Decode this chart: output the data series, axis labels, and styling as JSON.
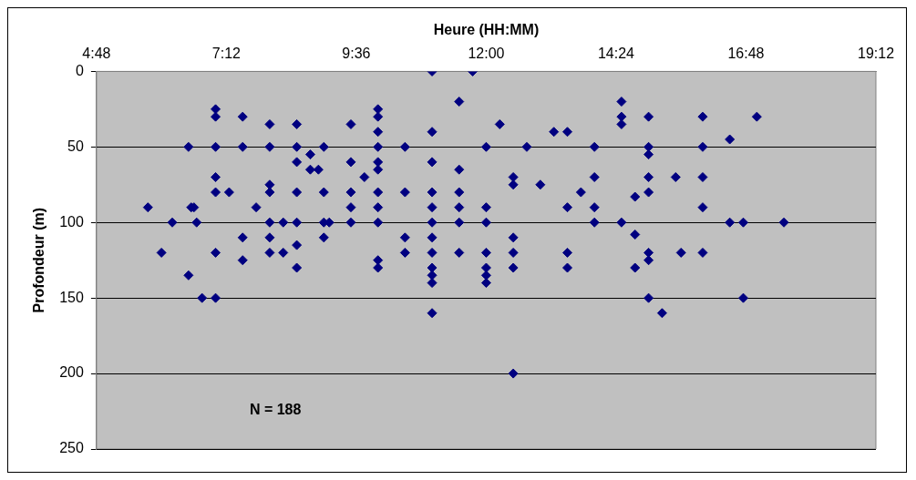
{
  "chart_data": {
    "type": "scatter",
    "xlabel": "Heure (HH:MM)",
    "ylabel": "Profondeur (m)",
    "x": [
      5.75,
      6,
      6.2,
      6.5,
      6.5,
      6.55,
      6.6,
      6.65,
      6.75,
      7,
      7,
      7,
      7,
      7,
      7,
      7,
      7.25,
      7.5,
      7.5,
      7.5,
      7.5,
      7.75,
      8,
      8,
      8,
      8,
      8,
      8,
      8,
      8.25,
      8.25,
      8.5,
      8.5,
      8.5,
      8.5,
      8.5,
      8.5,
      8.5,
      8.75,
      8.75,
      8.9,
      9,
      9,
      9,
      9,
      9.1,
      9.5,
      9.5,
      9.5,
      9.5,
      9.5,
      9.75,
      10,
      10,
      10,
      10,
      10,
      10,
      10,
      10,
      10,
      10,
      10,
      10.5,
      10.5,
      10.5,
      10.5,
      11,
      11,
      11,
      11,
      11,
      11,
      11,
      11,
      11,
      11,
      11,
      11,
      11.5,
      11.5,
      11.5,
      11.5,
      11.5,
      11.5,
      11.75,
      12,
      12,
      12,
      12,
      12,
      12,
      12,
      12.25,
      12.5,
      12.5,
      12.5,
      12.5,
      12.5,
      12.5,
      12.75,
      13,
      13.25,
      13.5,
      13.5,
      13.5,
      13.5,
      13.75,
      14,
      14,
      14,
      14,
      14.5,
      14.5,
      14.5,
      14.5,
      14.75,
      14.75,
      14.75,
      15,
      15,
      15,
      15,
      15,
      15,
      15,
      15,
      15.25,
      15.5,
      15.6,
      16,
      16,
      16,
      16,
      16,
      16.5,
      16.5,
      16.75,
      16.75,
      17,
      17.5
    ],
    "values": [
      90,
      120,
      100,
      50,
      135,
      90,
      90,
      100,
      150,
      25,
      30,
      50,
      70,
      80,
      120,
      150,
      80,
      30,
      50,
      110,
      125,
      90,
      35,
      50,
      75,
      80,
      100,
      110,
      120,
      100,
      120,
      35,
      50,
      60,
      80,
      100,
      115,
      130,
      55,
      65,
      65,
      50,
      80,
      100,
      110,
      100,
      35,
      60,
      80,
      90,
      100,
      70,
      25,
      30,
      40,
      50,
      60,
      65,
      80,
      90,
      100,
      125,
      130,
      50,
      80,
      110,
      120,
      0,
      40,
      60,
      80,
      90,
      100,
      110,
      120,
      130,
      135,
      140,
      160,
      20,
      65,
      80,
      90,
      100,
      120,
      0,
      50,
      90,
      100,
      120,
      130,
      135,
      140,
      35,
      70,
      75,
      110,
      120,
      130,
      200,
      50,
      75,
      40,
      40,
      90,
      120,
      130,
      80,
      50,
      70,
      90,
      100,
      20,
      30,
      35,
      100,
      83,
      108,
      130,
      30,
      50,
      55,
      70,
      80,
      120,
      125,
      150,
      160,
      70,
      120,
      30,
      50,
      70,
      90,
      120,
      45,
      100,
      100,
      150,
      30,
      100
    ],
    "color": "#000080",
    "marker": "diamond",
    "xlim": [
      4.8,
      19.2
    ],
    "xticks": [
      {
        "value": 4.8,
        "label": "4:48"
      },
      {
        "value": 7.2,
        "label": "7:12"
      },
      {
        "value": 9.6,
        "label": "9:36"
      },
      {
        "value": 12,
        "label": "12:00"
      },
      {
        "value": 14.4,
        "label": "14:24"
      },
      {
        "value": 16.8,
        "label": "16:48"
      },
      {
        "value": 19.2,
        "label": "19:12"
      }
    ],
    "ylim": [
      250,
      0
    ],
    "yticks": [
      0,
      50,
      100,
      150,
      200,
      250
    ],
    "grid": "y",
    "annotations": [
      "N = 188"
    ]
  }
}
